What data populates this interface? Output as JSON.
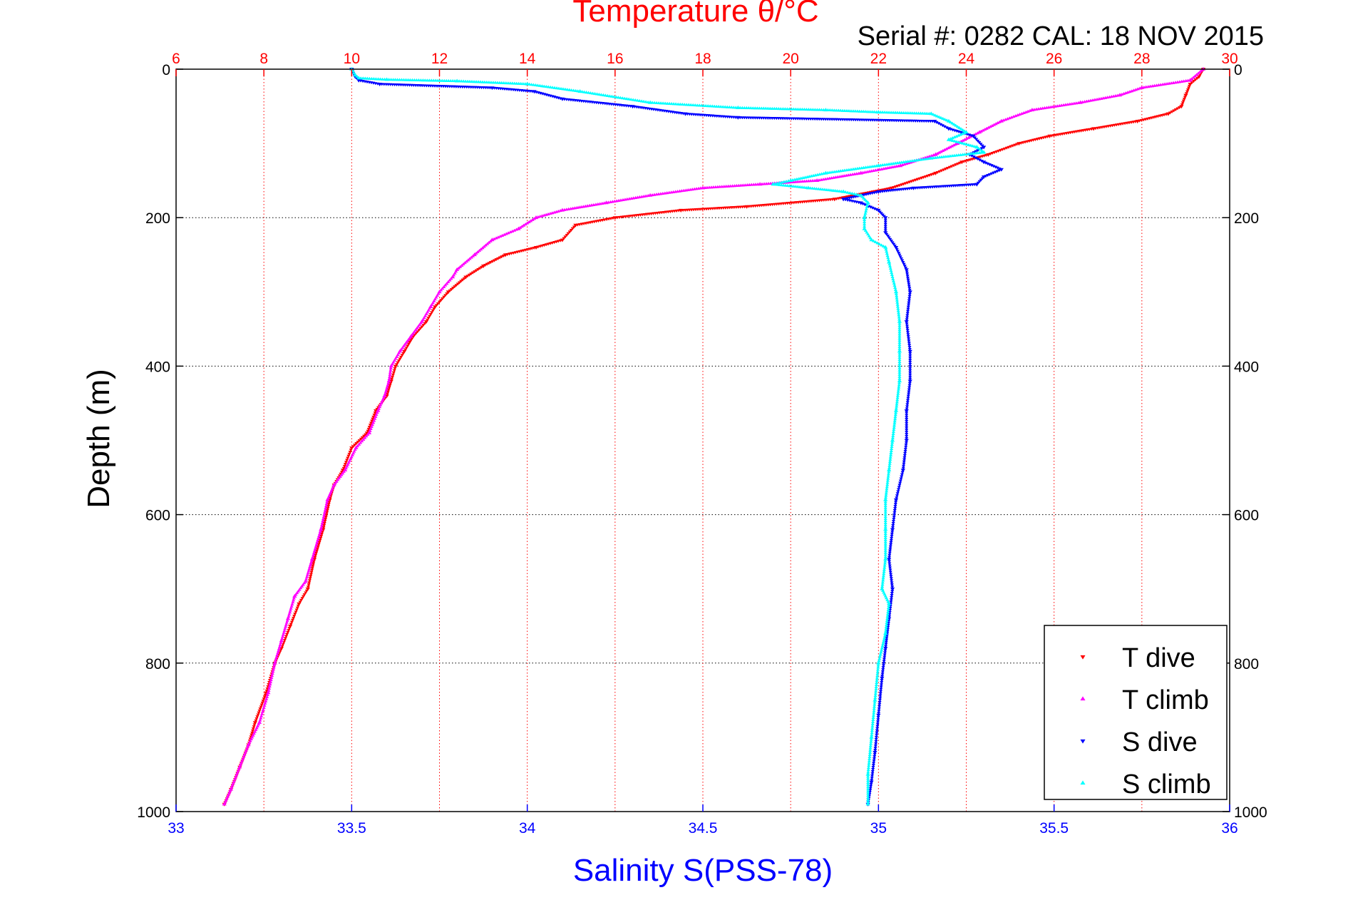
{
  "chart_data": {
    "type": "scatter",
    "title": "Temperature θ/°C",
    "subtitle": "Serial #: 0282  CAL: 18 NOV 2015",
    "ylabel": "Depth (m)",
    "xlabel_bottom": "Salinity S(PSS-78)",
    "y_axis": {
      "range": [
        0,
        1000
      ],
      "reversed": true,
      "ticks": [
        0,
        200,
        400,
        600,
        800,
        1000
      ],
      "tick_labels": [
        "0",
        "200",
        "400",
        "600",
        "800",
        "1000"
      ]
    },
    "x_axis_top": {
      "quantity": "temperature",
      "range": [
        6,
        30
      ],
      "ticks": [
        6,
        8,
        10,
        12,
        14,
        16,
        18,
        20,
        22,
        24,
        26,
        28,
        30
      ],
      "tick_labels": [
        "6",
        "8",
        "10",
        "12",
        "14",
        "16",
        "18",
        "20",
        "22",
        "24",
        "26",
        "28",
        "30"
      ]
    },
    "x_axis_bottom": {
      "quantity": "salinity",
      "range": [
        33,
        36
      ],
      "ticks": [
        33,
        33.5,
        34,
        34.5,
        35,
        35.5,
        36
      ],
      "tick_labels": [
        "33",
        "33.5",
        "34",
        "34.5",
        "35",
        "35.5",
        "36"
      ]
    },
    "grid": true,
    "legend_position": "bottom-right",
    "colors": {
      "temp_axis": "#ff0000",
      "sal_axis": "#0000ff",
      "grid_y": "#000000",
      "grid_x": "#ff0000"
    },
    "series": [
      {
        "name": "T dive",
        "axis": "top",
        "color": "#ff0000",
        "marker": "triangle-down",
        "points": [
          [
            29.4,
            0
          ],
          [
            29.3,
            10
          ],
          [
            29.1,
            20
          ],
          [
            29.0,
            35
          ],
          [
            28.9,
            50
          ],
          [
            28.6,
            60
          ],
          [
            27.9,
            70
          ],
          [
            26.9,
            80
          ],
          [
            25.9,
            90
          ],
          [
            25.2,
            100
          ],
          [
            24.5,
            115
          ],
          [
            23.9,
            125
          ],
          [
            23.3,
            140
          ],
          [
            22.3,
            160
          ],
          [
            21.0,
            175
          ],
          [
            19.0,
            185
          ],
          [
            17.5,
            190
          ],
          [
            16.0,
            200
          ],
          [
            15.1,
            210
          ],
          [
            14.8,
            230
          ],
          [
            14.2,
            240
          ],
          [
            13.5,
            250
          ],
          [
            13.0,
            265
          ],
          [
            12.6,
            280
          ],
          [
            12.2,
            300
          ],
          [
            11.9,
            320
          ],
          [
            11.7,
            340
          ],
          [
            11.4,
            360
          ],
          [
            11.2,
            380
          ],
          [
            11.0,
            400
          ],
          [
            10.9,
            420
          ],
          [
            10.8,
            440
          ],
          [
            10.55,
            460
          ],
          [
            10.35,
            490
          ],
          [
            10.0,
            510
          ],
          [
            9.8,
            540
          ],
          [
            9.6,
            560
          ],
          [
            9.5,
            580
          ],
          [
            9.35,
            620
          ],
          [
            9.15,
            660
          ],
          [
            9.0,
            700
          ],
          [
            8.8,
            720
          ],
          [
            8.6,
            750
          ],
          [
            8.4,
            780
          ],
          [
            8.25,
            800
          ],
          [
            8.05,
            840
          ],
          [
            7.8,
            880
          ],
          [
            7.65,
            910
          ],
          [
            7.45,
            940
          ],
          [
            7.25,
            970
          ],
          [
            7.1,
            990
          ]
        ]
      },
      {
        "name": "T climb",
        "axis": "top",
        "color": "#ff00ff",
        "marker": "triangle-up",
        "points": [
          [
            29.4,
            0
          ],
          [
            29.1,
            15
          ],
          [
            28.0,
            25
          ],
          [
            27.5,
            35
          ],
          [
            26.6,
            45
          ],
          [
            25.5,
            55
          ],
          [
            24.8,
            70
          ],
          [
            24.3,
            85
          ],
          [
            23.8,
            100
          ],
          [
            23.3,
            115
          ],
          [
            22.5,
            130
          ],
          [
            21.6,
            140
          ],
          [
            20.6,
            150
          ],
          [
            19.3,
            155
          ],
          [
            18.0,
            160
          ],
          [
            16.8,
            170
          ],
          [
            15.8,
            180
          ],
          [
            14.8,
            190
          ],
          [
            14.2,
            200
          ],
          [
            13.8,
            215
          ],
          [
            13.2,
            230
          ],
          [
            12.8,
            250
          ],
          [
            12.4,
            270
          ],
          [
            12.3,
            280
          ],
          [
            12.0,
            300
          ],
          [
            11.8,
            320
          ],
          [
            11.6,
            340
          ],
          [
            11.35,
            360
          ],
          [
            11.1,
            380
          ],
          [
            10.9,
            400
          ],
          [
            10.85,
            420
          ],
          [
            10.75,
            440
          ],
          [
            10.6,
            460
          ],
          [
            10.4,
            490
          ],
          [
            10.1,
            510
          ],
          [
            9.85,
            540
          ],
          [
            9.6,
            560
          ],
          [
            9.45,
            580
          ],
          [
            9.3,
            620
          ],
          [
            9.1,
            660
          ],
          [
            8.95,
            690
          ],
          [
            8.7,
            710
          ],
          [
            8.55,
            740
          ],
          [
            8.4,
            770
          ],
          [
            8.25,
            800
          ],
          [
            8.1,
            840
          ],
          [
            7.9,
            880
          ],
          [
            7.65,
            910
          ],
          [
            7.45,
            940
          ],
          [
            7.25,
            970
          ],
          [
            7.1,
            990
          ]
        ]
      },
      {
        "name": "S dive",
        "axis": "bottom",
        "color": "#0000ff",
        "marker": "triangle-down",
        "points": [
          [
            33.5,
            0
          ],
          [
            33.51,
            10
          ],
          [
            33.52,
            15
          ],
          [
            33.58,
            20
          ],
          [
            33.9,
            25
          ],
          [
            34.02,
            30
          ],
          [
            34.1,
            40
          ],
          [
            34.3,
            50
          ],
          [
            34.45,
            60
          ],
          [
            34.6,
            65
          ],
          [
            35.16,
            70
          ],
          [
            35.2,
            80
          ],
          [
            35.27,
            90
          ],
          [
            35.3,
            105
          ],
          [
            35.26,
            115
          ],
          [
            35.3,
            125
          ],
          [
            35.35,
            135
          ],
          [
            35.3,
            145
          ],
          [
            35.28,
            155
          ],
          [
            35.1,
            160
          ],
          [
            35.0,
            165
          ],
          [
            34.9,
            175
          ],
          [
            34.95,
            180
          ],
          [
            35.0,
            190
          ],
          [
            35.02,
            200
          ],
          [
            35.02,
            220
          ],
          [
            35.05,
            240
          ],
          [
            35.08,
            270
          ],
          [
            35.09,
            300
          ],
          [
            35.08,
            340
          ],
          [
            35.09,
            380
          ],
          [
            35.09,
            420
          ],
          [
            35.08,
            460
          ],
          [
            35.08,
            500
          ],
          [
            35.07,
            540
          ],
          [
            35.05,
            580
          ],
          [
            35.04,
            620
          ],
          [
            35.03,
            660
          ],
          [
            35.04,
            700
          ],
          [
            35.03,
            740
          ],
          [
            35.02,
            780
          ],
          [
            35.01,
            820
          ],
          [
            35.0,
            870
          ],
          [
            34.99,
            920
          ],
          [
            34.98,
            960
          ],
          [
            34.97,
            990
          ]
        ]
      },
      {
        "name": "S climb",
        "axis": "bottom",
        "color": "#00ffff",
        "marker": "triangle-up",
        "points": [
          [
            33.5,
            0
          ],
          [
            33.51,
            8
          ],
          [
            33.52,
            12
          ],
          [
            33.6,
            14
          ],
          [
            33.8,
            16
          ],
          [
            34.0,
            20
          ],
          [
            34.15,
            30
          ],
          [
            34.35,
            45
          ],
          [
            34.6,
            52
          ],
          [
            34.85,
            55
          ],
          [
            35.0,
            58
          ],
          [
            35.15,
            60
          ],
          [
            35.2,
            70
          ],
          [
            35.25,
            85
          ],
          [
            35.2,
            95
          ],
          [
            35.28,
            105
          ],
          [
            35.3,
            112
          ],
          [
            35.15,
            120
          ],
          [
            35.0,
            130
          ],
          [
            34.85,
            140
          ],
          [
            34.75,
            150
          ],
          [
            34.7,
            155
          ],
          [
            34.8,
            160
          ],
          [
            34.9,
            165
          ],
          [
            34.95,
            170
          ],
          [
            34.97,
            180
          ],
          [
            34.96,
            200
          ],
          [
            34.96,
            215
          ],
          [
            34.98,
            230
          ],
          [
            35.02,
            240
          ],
          [
            35.03,
            260
          ],
          [
            35.05,
            300
          ],
          [
            35.06,
            340
          ],
          [
            35.06,
            380
          ],
          [
            35.06,
            420
          ],
          [
            35.05,
            460
          ],
          [
            35.04,
            500
          ],
          [
            35.03,
            540
          ],
          [
            35.02,
            580
          ],
          [
            35.02,
            620
          ],
          [
            35.02,
            660
          ],
          [
            35.01,
            700
          ],
          [
            35.03,
            720
          ],
          [
            35.02,
            760
          ],
          [
            35.0,
            800
          ],
          [
            34.99,
            850
          ],
          [
            34.98,
            900
          ],
          [
            34.97,
            950
          ],
          [
            34.97,
            990
          ]
        ]
      }
    ]
  }
}
